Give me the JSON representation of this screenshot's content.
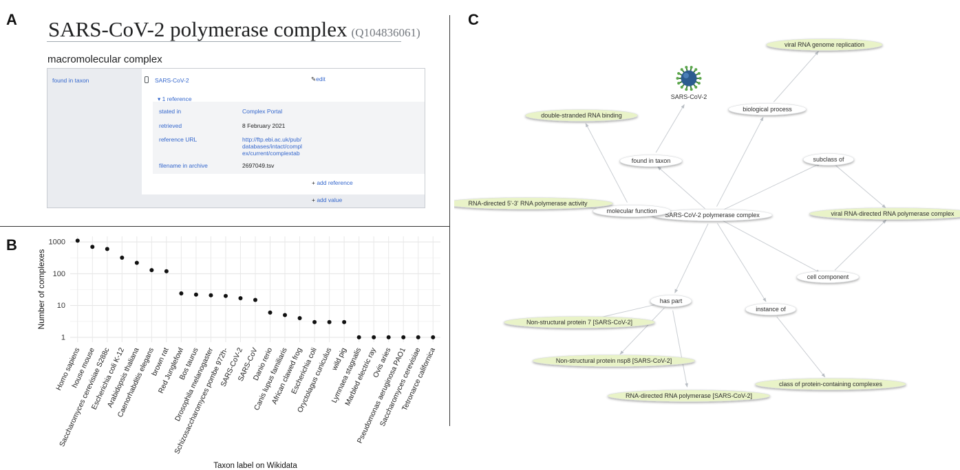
{
  "panels": {
    "a": "A",
    "b": "B",
    "c": "C"
  },
  "wikidata": {
    "title": "SARS-CoV-2 polymerase complex",
    "qid": "(Q104836061)",
    "description": "macromolecular complex",
    "property": "found in taxon",
    "value": "SARS-CoV-2",
    "edit_label": "edit",
    "reference_toggle": "1 reference",
    "references": [
      {
        "key": "stated in",
        "value": "Complex Portal"
      },
      {
        "key": "retrieved",
        "value": "8 February 2021"
      },
      {
        "key": "reference URL",
        "value_lines": [
          "http://ftp.ebi.ac.uk/pub/",
          "databases/intact/compl",
          "ex/current/complextab"
        ]
      },
      {
        "key": "filename in archive",
        "value": "2697049.tsv"
      }
    ],
    "add_reference": "add reference",
    "add_value": "add value"
  },
  "chart_data": {
    "type": "scatter",
    "xlabel": "Taxon label on Wikidata",
    "ylabel": "Number of complexes",
    "yscale": "log10",
    "ylim": [
      0.7,
      1500
    ],
    "yticks": [
      "1",
      "10",
      "100",
      "1000"
    ],
    "grid": true,
    "categories": [
      "Homo sapiens",
      "house mouse",
      "Saccharomyces cerevisiae S288c",
      "Escherichia coli K-12",
      "Arabidopsis thaliana",
      "Caenorhabditis elegans",
      "brown rat",
      "Red Junglefowl",
      "Bos taurus",
      "Drosophila melanogaster",
      "Schizosaccharomyces pombe 972h-",
      "SARS-CoV-2",
      "SARS-CoV",
      "Danio rerio",
      "Canis lupus familiaris",
      "African clawed frog",
      "Escherichia coli",
      "Oryctolagus cuniculus",
      "wild pig",
      "Lymnaea stagnalis",
      "Marbled electric ray",
      "Ovis aries",
      "Pseudomonas aeruginosa PAO1",
      "Saccharomyces cerevisiae",
      "Tetronarce californica"
    ],
    "values": [
      1100,
      700,
      600,
      320,
      220,
      130,
      120,
      24,
      22,
      21,
      20,
      17,
      15,
      6,
      5,
      4,
      3,
      3,
      3,
      1,
      1,
      1,
      1,
      1,
      1
    ]
  },
  "graph": {
    "center": "SARS-CoV-2 polymerase complex",
    "relations": [
      "found in taxon",
      "biological process",
      "subclass of",
      "molecular function",
      "cell component",
      "has part",
      "instance of"
    ],
    "values": [
      "SARS-CoV-2",
      "viral RNA genome replication",
      "double-stranded RNA binding",
      "RNA-directed 5'-3' RNA polymerase activity",
      "viral RNA-directed RNA polymerase complex",
      "Non-structural protein 7 [SARS-CoV-2]",
      "Non-structural protein nsp8 [SARS-CoV-2]",
      "RNA-directed RNA polymerase [SARS-CoV-2]",
      "class of protein-containing complexes"
    ],
    "colors": {
      "value_fill": "#e9f3c8",
      "relation_fill": "#ffffff",
      "edge": "#c9cdd2"
    }
  }
}
